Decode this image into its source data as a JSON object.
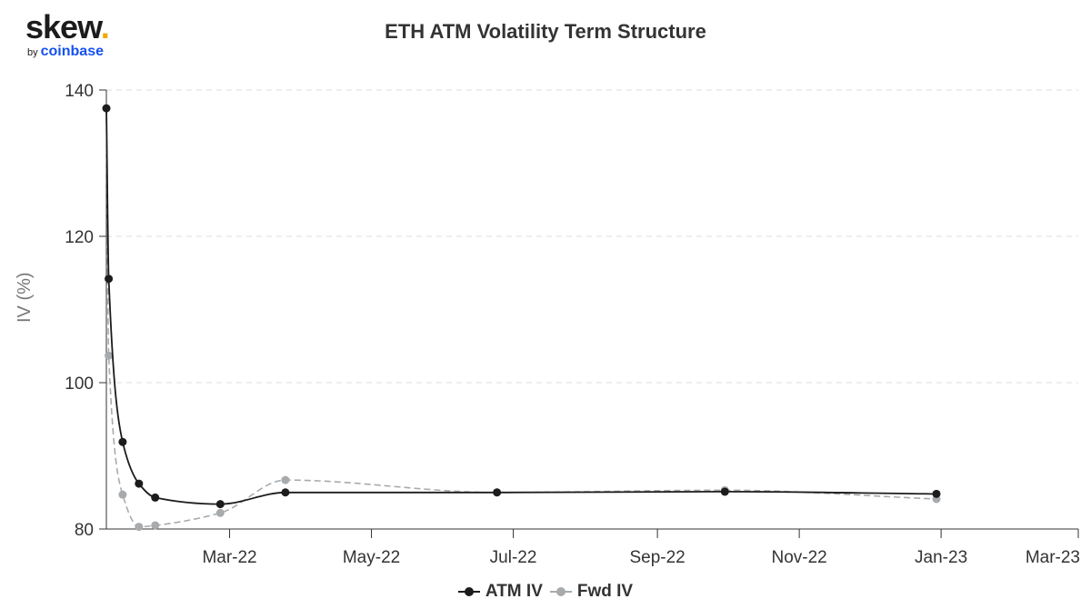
{
  "logo": {
    "word": "skew",
    "dot": ".",
    "by": "by",
    "brand": "coinbase"
  },
  "chart_data": {
    "type": "line",
    "title": "ETH ATM Volatility Term Structure",
    "ylabel": "IV (%)",
    "xlabel": "",
    "ylim": [
      80,
      140
    ],
    "xlim": [
      "2022-01-07",
      "2023-03-01"
    ],
    "y_ticks": [
      "80",
      "100",
      "120",
      "140"
    ],
    "x_ticks": [
      {
        "date": "2022-03-01",
        "label": "Mar-22"
      },
      {
        "date": "2022-05-01",
        "label": "May-22"
      },
      {
        "date": "2022-07-01",
        "label": "Jul-22"
      },
      {
        "date": "2022-09-01",
        "label": "Sep-22"
      },
      {
        "date": "2022-11-01",
        "label": "Nov-22"
      },
      {
        "date": "2023-01-01",
        "label": "Jan-23"
      },
      {
        "date": "2023-03-01",
        "label": "Mar-23"
      }
    ],
    "grid": "horizontal",
    "legend": "bottom-center",
    "series": [
      {
        "name": "ATM IV",
        "color": "#1c1c1c",
        "dash": false,
        "points": [
          {
            "x": "2022-01-07",
            "y": 137.5
          },
          {
            "x": "2022-01-08",
            "y": 114.2
          },
          {
            "x": "2022-01-14",
            "y": 91.9
          },
          {
            "x": "2022-01-21",
            "y": 86.2
          },
          {
            "x": "2022-01-28",
            "y": 84.3
          },
          {
            "x": "2022-02-25",
            "y": 83.4
          },
          {
            "x": "2022-03-25",
            "y": 85.0
          },
          {
            "x": "2022-06-24",
            "y": 85.0
          },
          {
            "x": "2022-09-30",
            "y": 85.1
          },
          {
            "x": "2022-12-30",
            "y": 84.8
          }
        ]
      },
      {
        "name": "Fwd IV",
        "color": "#a7abae",
        "dash": true,
        "points": [
          {
            "x": "2022-01-07",
            "y": 137.5
          },
          {
            "x": "2022-01-08",
            "y": 103.7
          },
          {
            "x": "2022-01-14",
            "y": 84.7
          },
          {
            "x": "2022-01-21",
            "y": 80.3
          },
          {
            "x": "2022-01-28",
            "y": 80.5
          },
          {
            "x": "2022-02-25",
            "y": 82.2
          },
          {
            "x": "2022-03-25",
            "y": 86.7
          },
          {
            "x": "2022-06-24",
            "y": 85.0
          },
          {
            "x": "2022-09-30",
            "y": 85.3
          },
          {
            "x": "2022-12-30",
            "y": 84.1
          }
        ]
      }
    ]
  }
}
